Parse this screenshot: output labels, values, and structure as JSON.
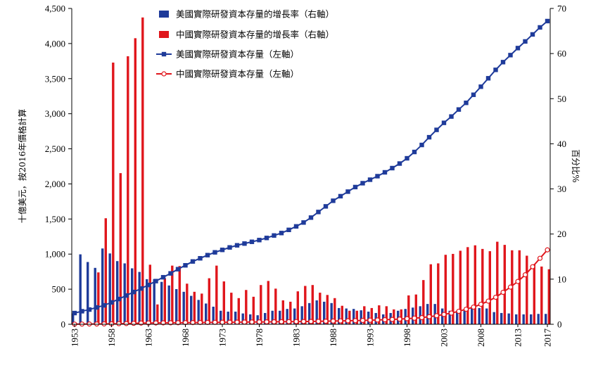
{
  "chart_data": {
    "type": "bar+line",
    "title": "",
    "years": [
      1953,
      1954,
      1955,
      1956,
      1957,
      1958,
      1959,
      1960,
      1961,
      1962,
      1963,
      1964,
      1965,
      1966,
      1967,
      1968,
      1969,
      1970,
      1971,
      1972,
      1973,
      1974,
      1975,
      1976,
      1977,
      1978,
      1979,
      1980,
      1981,
      1982,
      1983,
      1984,
      1985,
      1986,
      1987,
      1988,
      1989,
      1990,
      1991,
      1992,
      1993,
      1994,
      1995,
      1996,
      1997,
      1998,
      1999,
      2000,
      2001,
      2002,
      2003,
      2004,
      2005,
      2006,
      2007,
      2008,
      2009,
      2010,
      2011,
      2012,
      2013,
      2014,
      2015,
      2016,
      2017
    ],
    "x_tick_labels": [
      "1953",
      "1958",
      "1963",
      "1968",
      "1973",
      "1978",
      "1983",
      "1988",
      "1993",
      "1998",
      "2003",
      "2008",
      "2013",
      "2017"
    ],
    "x_tick_years": [
      1953,
      1958,
      1963,
      1968,
      1973,
      1978,
      1983,
      1988,
      1993,
      1998,
      2003,
      2008,
      2013,
      2017
    ],
    "left_axis": {
      "label": "十億美元，按2016年價格計算",
      "ylim": [
        0,
        4500
      ],
      "tick_labels": [
        "0",
        "500",
        "1,000",
        "1,500",
        "2,000",
        "2,500",
        "3,000",
        "3,500",
        "4,000",
        "4,500"
      ],
      "tick_values": [
        0,
        500,
        1000,
        1500,
        2000,
        2500,
        3000,
        3500,
        4000,
        4500
      ]
    },
    "right_axis": {
      "label": "百分比%",
      "ylim": [
        0,
        70
      ],
      "tick_labels": [
        "0",
        "10",
        "20",
        "30",
        "40",
        "50",
        "60",
        "70"
      ],
      "tick_values": [
        0,
        10,
        20,
        30,
        40,
        50,
        60,
        70
      ]
    },
    "series": [
      {
        "name": "美國實際研發資本存量的增長率（右軸）",
        "kind": "bar",
        "axis": "right",
        "color": "#1f3b9a",
        "values": [
          2.4,
          15.5,
          13.8,
          12.5,
          16.8,
          15.7,
          14.0,
          13.5,
          12.4,
          11.6,
          10.0,
          10.0,
          9.4,
          8.6,
          7.8,
          7.2,
          6.3,
          5.4,
          4.6,
          3.9,
          3.0,
          2.8,
          2.8,
          2.4,
          2.2,
          2.0,
          2.5,
          3.0,
          3.0,
          3.4,
          3.5,
          4.0,
          4.7,
          5.3,
          5.0,
          4.7,
          3.6,
          3.5,
          3.4,
          3.1,
          2.8,
          2.5,
          2.2,
          2.5,
          3.0,
          3.4,
          3.7,
          4.0,
          4.5,
          4.5,
          3.5,
          3.0,
          3.0,
          3.0,
          3.5,
          3.6,
          3.5,
          2.7,
          2.5,
          2.4,
          2.2,
          2.2,
          2.2,
          2.3,
          2.3
        ]
      },
      {
        "name": "中國實際研發資本存量的增長率（右軸）",
        "kind": "bar",
        "axis": "right",
        "color": "#e0161c",
        "values": [
          null,
          null,
          null,
          11.5,
          23.5,
          58.0,
          33.5,
          59.4,
          63.4,
          68.0,
          13.2,
          4.4,
          10.2,
          13.0,
          12.9,
          9.0,
          7.2,
          6.8,
          10.2,
          13.0,
          9.5,
          7.0,
          5.8,
          7.6,
          6.1,
          8.7,
          9.6,
          7.9,
          5.3,
          5.0,
          7.3,
          8.5,
          8.7,
          7.0,
          6.5,
          5.8,
          4.1,
          3.0,
          3.0,
          4.0,
          3.6,
          4.2,
          4.0,
          3.3,
          3.3,
          6.4,
          6.6,
          9.8,
          13.3,
          13.5,
          15.4,
          15.6,
          16.3,
          17.1,
          17.5,
          16.7,
          16.2,
          18.3,
          17.6,
          16.4,
          16.4,
          15.2,
          13.3,
          12.8,
          12.2
        ]
      },
      {
        "name": "美國實際研發資本存量（左軸）",
        "kind": "line",
        "axis": "left",
        "color": "#1f3b9a",
        "marker": "square",
        "values": [
          160,
          186,
          210,
          240,
          270,
          312,
          360,
          410,
          460,
          510,
          560,
          615,
          670,
          725,
          785,
          840,
          895,
          940,
          985,
          1025,
          1060,
          1095,
          1125,
          1150,
          1175,
          1200,
          1230,
          1265,
          1300,
          1345,
          1395,
          1450,
          1520,
          1600,
          1680,
          1760,
          1825,
          1890,
          1955,
          2010,
          2060,
          2110,
          2165,
          2225,
          2290,
          2365,
          2455,
          2555,
          2665,
          2770,
          2870,
          2960,
          3060,
          3155,
          3270,
          3385,
          3505,
          3625,
          3735,
          3835,
          3935,
          4030,
          4130,
          4230,
          4320
        ]
      },
      {
        "name": "中國實際研發資本存量（左軸）",
        "kind": "line",
        "axis": "left",
        "color": "#e0161c",
        "marker": "circle",
        "values": [
          2,
          3,
          4,
          4,
          5,
          6,
          8,
          10,
          13,
          17,
          18,
          19,
          20,
          21,
          22,
          23,
          24,
          25,
          26,
          27,
          28,
          29,
          30,
          31,
          32,
          33,
          34,
          35,
          36,
          37,
          38,
          39,
          40,
          42,
          44,
          46,
          48,
          50,
          52,
          55,
          58,
          61,
          65,
          69,
          74,
          80,
          87,
          95,
          108,
          122,
          140,
          160,
          185,
          215,
          245,
          285,
          330,
          385,
          455,
          530,
          610,
          705,
          820,
          940,
          1060
        ]
      }
    ],
    "legend_position": "top-center",
    "grid": false
  }
}
